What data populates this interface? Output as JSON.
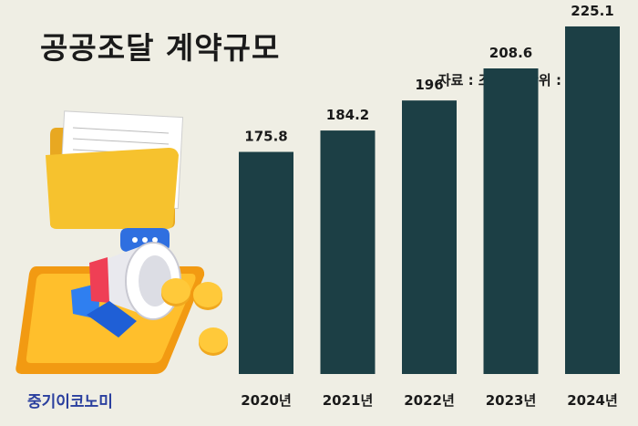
{
  "title": "공공조달 계약규모",
  "source_note": "자료 : 조달청, 단위 : 조 원",
  "brand": "중기이코노미",
  "colors": {
    "background": "#efeee4",
    "bar": "#1c3f45",
    "brand": "#2a3f9e"
  },
  "chart_data": {
    "type": "bar",
    "categories": [
      "2020년",
      "2021년",
      "2022년",
      "2023년",
      "2024년"
    ],
    "values": [
      175.8,
      184.2,
      196,
      208.6,
      225.1
    ],
    "data_labels": [
      "175.8",
      "184.2",
      "196",
      "208.6",
      "225.1"
    ],
    "xlabel": "",
    "ylabel": "",
    "grid": false,
    "legend": "none"
  }
}
